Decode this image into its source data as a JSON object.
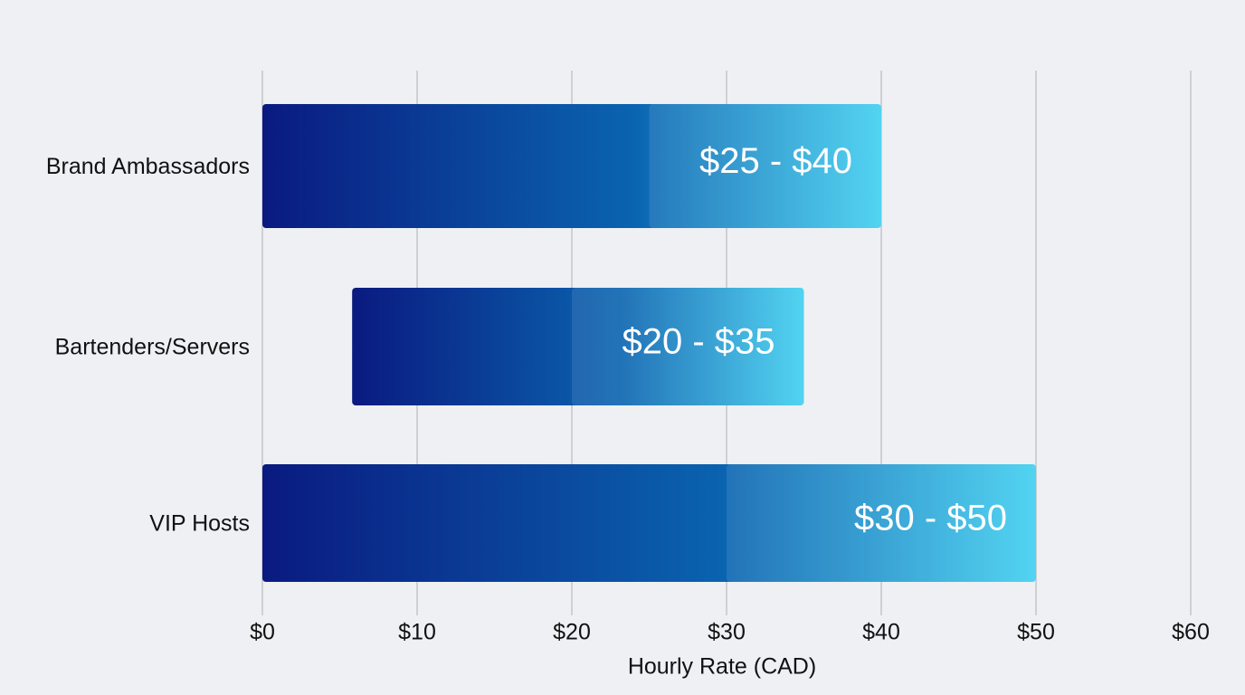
{
  "chart_data": {
    "type": "range_bar",
    "categories": [
      "Brand Ambassadors",
      "Bartenders/Servers",
      "VIP Hosts"
    ],
    "bar_start": [
      0,
      5.8,
      0
    ],
    "low": [
      25,
      20,
      30
    ],
    "high": [
      40,
      35,
      50
    ],
    "value_labels": [
      "$25 - $40",
      "$20 - $35",
      "$30 - $50"
    ],
    "x_label": "Hourly Rate (CAD)",
    "xlim": [
      0,
      60
    ],
    "xticks": [
      {
        "value": 0,
        "label": "$0"
      },
      {
        "value": 10,
        "label": "$10"
      },
      {
        "value": 20,
        "label": "$20"
      },
      {
        "value": 30,
        "label": "$30"
      },
      {
        "value": 40,
        "label": "$40"
      },
      {
        "value": 50,
        "label": "$50"
      },
      {
        "value": 60,
        "label": "$60"
      }
    ],
    "grid": true
  }
}
